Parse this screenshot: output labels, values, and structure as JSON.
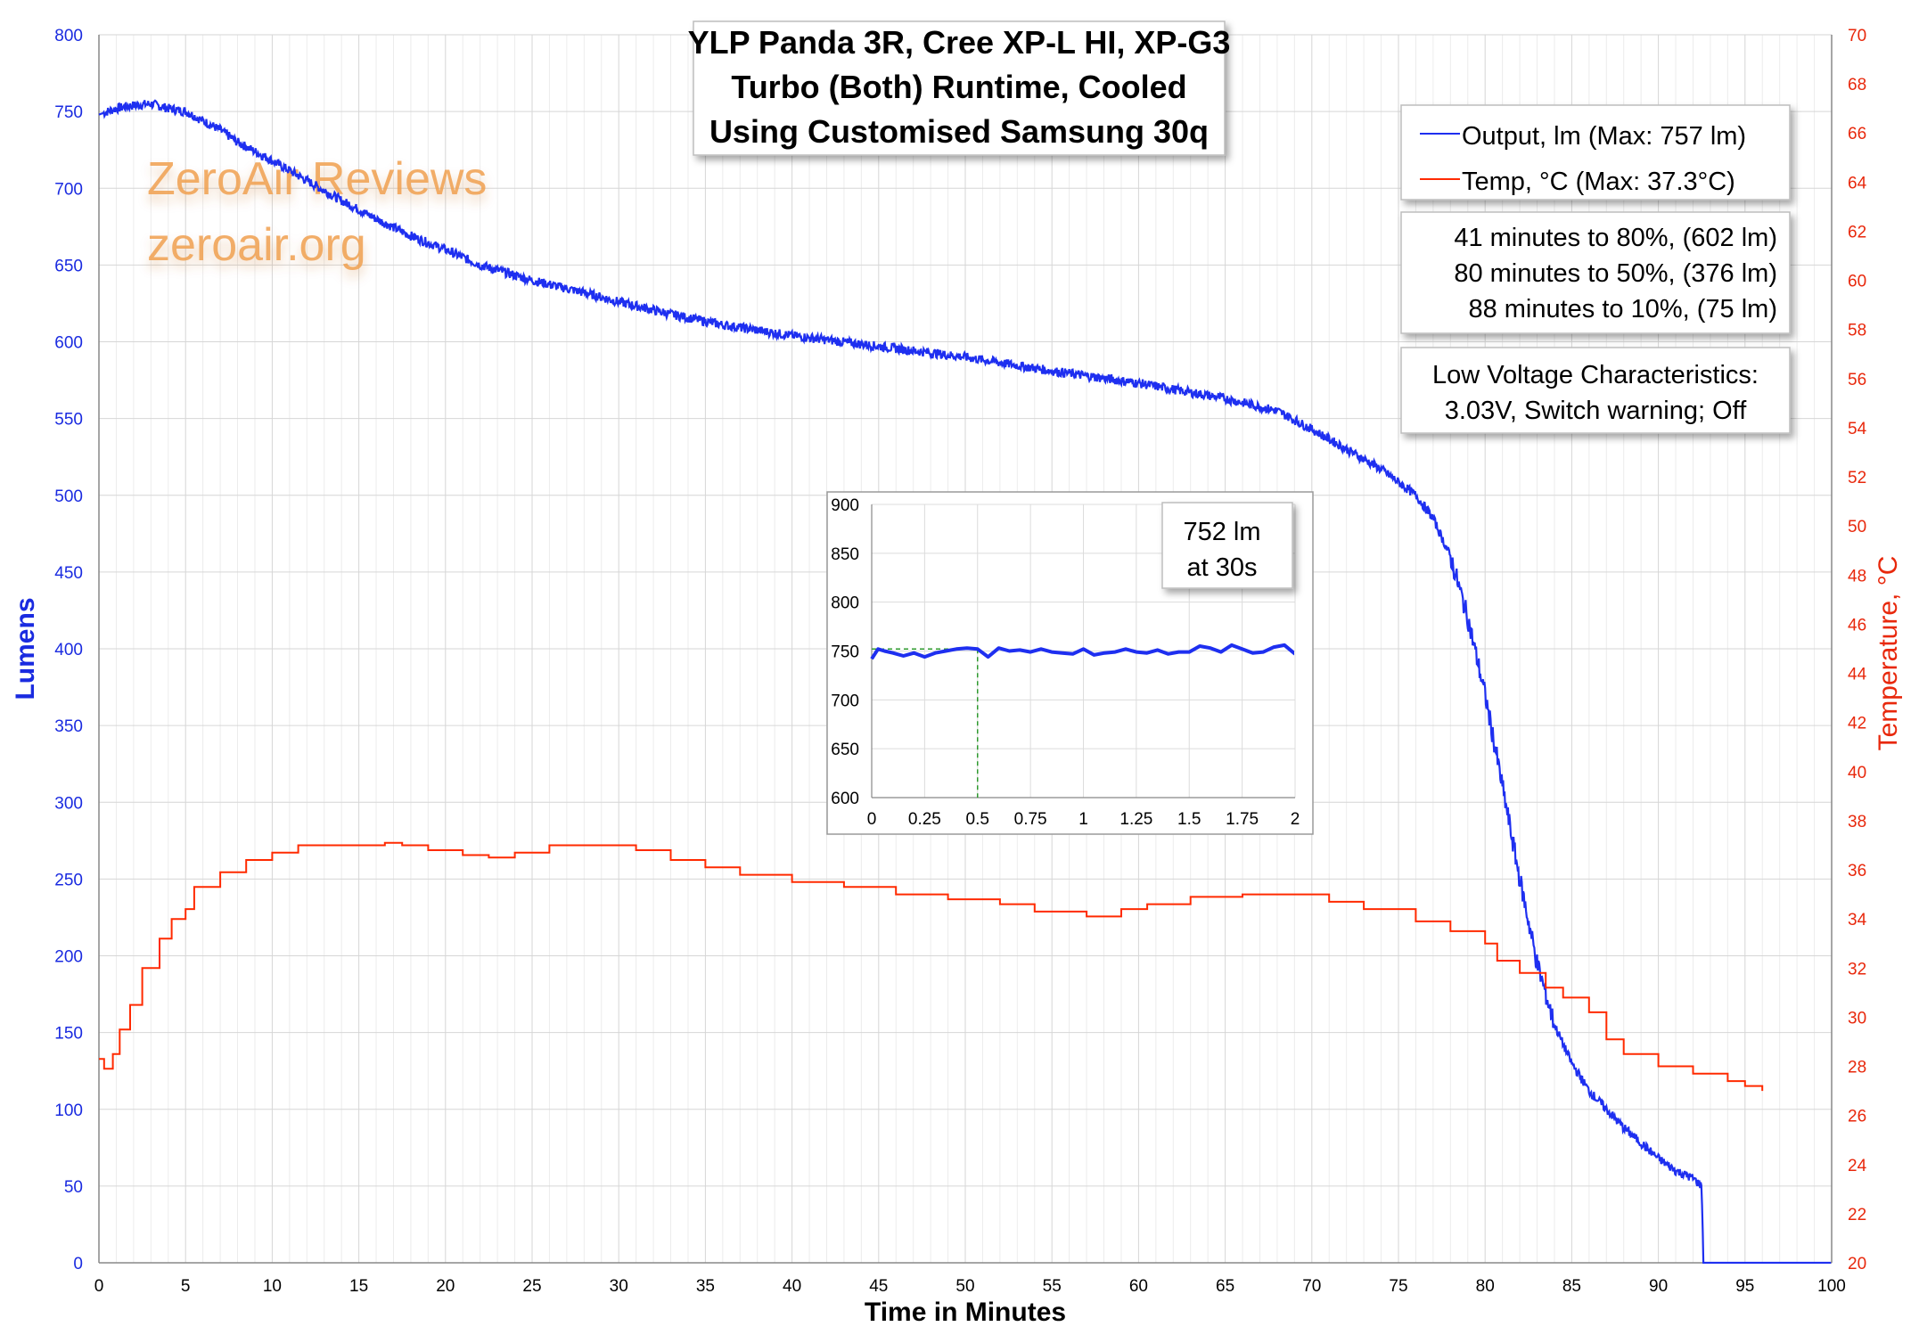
{
  "chart_data": {
    "type": "line",
    "title": [
      "YLP Panda 3R, Cree XP-L HI, XP-G3",
      "Turbo (Both) Runtime, Cooled",
      "Using Customised Samsung 30q"
    ],
    "xlabel": "Time in Minutes",
    "ylabel": "Lumens",
    "y2label": "Temperature, °C",
    "xlim": [
      0,
      100
    ],
    "ylim": [
      0,
      800
    ],
    "y2lim": [
      20,
      70
    ],
    "xticks": [
      0,
      5,
      10,
      15,
      20,
      25,
      30,
      35,
      40,
      45,
      50,
      55,
      60,
      65,
      70,
      75,
      80,
      85,
      90,
      95,
      100
    ],
    "yticks": [
      0,
      50,
      100,
      150,
      200,
      250,
      300,
      350,
      400,
      450,
      500,
      550,
      600,
      650,
      700,
      750,
      800
    ],
    "y2ticks": [
      20,
      22,
      24,
      26,
      28,
      30,
      32,
      34,
      36,
      38,
      40,
      42,
      44,
      46,
      48,
      50,
      52,
      54,
      56,
      58,
      60,
      62,
      64,
      66,
      68,
      70
    ],
    "grid": true,
    "legend_position": "top-right",
    "colors": {
      "output": "#1e2ff0",
      "temp": "#ff2a00",
      "left_axis": "#1a2be0",
      "right_axis": "#e8280c",
      "watermark": "#f0a050"
    },
    "series": [
      {
        "name": "Output, lm (Max: 757 lm)",
        "axis": "left",
        "points": [
          [
            0,
            748
          ],
          [
            1,
            752
          ],
          [
            2,
            754
          ],
          [
            3,
            755
          ],
          [
            4,
            752
          ],
          [
            5,
            750
          ],
          [
            6,
            744
          ],
          [
            7,
            738
          ],
          [
            8,
            730
          ],
          [
            10,
            718
          ],
          [
            12,
            705
          ],
          [
            14,
            692
          ],
          [
            16,
            680
          ],
          [
            18,
            669
          ],
          [
            20,
            660
          ],
          [
            22,
            650
          ],
          [
            25,
            640
          ],
          [
            28,
            632
          ],
          [
            30,
            626
          ],
          [
            33,
            618
          ],
          [
            36,
            611
          ],
          [
            40,
            604
          ],
          [
            45,
            597
          ],
          [
            50,
            590
          ],
          [
            55,
            581
          ],
          [
            60,
            573
          ],
          [
            65,
            563
          ],
          [
            68,
            555
          ],
          [
            70,
            543
          ],
          [
            72,
            530
          ],
          [
            74,
            517
          ],
          [
            76,
            500
          ],
          [
            77,
            485
          ],
          [
            78,
            460
          ],
          [
            79,
            420
          ],
          [
            80,
            370
          ],
          [
            81,
            310
          ],
          [
            82,
            250
          ],
          [
            83,
            195
          ],
          [
            84,
            155
          ],
          [
            85,
            130
          ],
          [
            86,
            112
          ],
          [
            87,
            100
          ],
          [
            88,
            88
          ],
          [
            89,
            78
          ],
          [
            90,
            68
          ],
          [
            91,
            60
          ],
          [
            92,
            55
          ],
          [
            92.5,
            50
          ],
          [
            92.6,
            0
          ],
          [
            100,
            0
          ]
        ]
      },
      {
        "name": "Temp, °C (Max: 37.3°C)",
        "axis": "right",
        "points": [
          [
            0,
            28.3
          ],
          [
            0.3,
            27.9
          ],
          [
            0.6,
            27.9
          ],
          [
            0.8,
            28.5
          ],
          [
            1.2,
            29.5
          ],
          [
            1.8,
            30.5
          ],
          [
            2.5,
            32.0
          ],
          [
            3.5,
            33.2
          ],
          [
            4.2,
            34.0
          ],
          [
            5,
            34.4
          ],
          [
            5.5,
            35.3
          ],
          [
            7,
            35.9
          ],
          [
            8.5,
            36.4
          ],
          [
            10,
            36.7
          ],
          [
            11.5,
            37.0
          ],
          [
            16,
            37.0
          ],
          [
            16.5,
            37.1
          ],
          [
            17.5,
            37.0
          ],
          [
            19,
            36.8
          ],
          [
            21,
            36.6
          ],
          [
            22.5,
            36.5
          ],
          [
            24,
            36.7
          ],
          [
            26,
            37.0
          ],
          [
            30,
            37.0
          ],
          [
            31,
            36.8
          ],
          [
            33,
            36.4
          ],
          [
            35,
            36.1
          ],
          [
            37,
            35.8
          ],
          [
            40,
            35.5
          ],
          [
            43,
            35.3
          ],
          [
            46,
            35.0
          ],
          [
            49,
            34.8
          ],
          [
            52,
            34.6
          ],
          [
            54,
            34.3
          ],
          [
            57,
            34.1
          ],
          [
            59,
            34.4
          ],
          [
            60.5,
            34.6
          ],
          [
            63,
            34.9
          ],
          [
            66,
            35.0
          ],
          [
            69,
            35.0
          ],
          [
            71,
            34.7
          ],
          [
            73,
            34.4
          ],
          [
            76,
            33.9
          ],
          [
            78,
            33.5
          ],
          [
            80,
            33.0
          ],
          [
            80.7,
            32.3
          ],
          [
            82,
            31.8
          ],
          [
            83.5,
            31.2
          ],
          [
            84.5,
            30.8
          ],
          [
            86,
            30.2
          ],
          [
            87,
            29.1
          ],
          [
            88,
            28.5
          ],
          [
            90,
            28.0
          ],
          [
            92,
            27.7
          ],
          [
            94,
            27.4
          ],
          [
            95,
            27.2
          ],
          [
            96,
            27.0
          ]
        ]
      }
    ],
    "annotations": [
      [
        "41 minutes to 80%, (602 lm)",
        "80 minutes to 50%, (376 lm)",
        "88 minutes to 10%, (75 lm)"
      ],
      [
        "Low Voltage Characteristics:",
        "3.03V, Switch warning; Off"
      ]
    ],
    "watermark": [
      "ZeroAir Reviews",
      "zeroair.org"
    ],
    "inset": {
      "type": "line",
      "xlim": [
        0,
        2
      ],
      "ylim": [
        600,
        900
      ],
      "xticks": [
        0,
        0.25,
        0.5,
        0.75,
        1,
        1.25,
        1.5,
        1.75,
        2
      ],
      "xtick_labels": [
        "0",
        "0.25",
        "0.5",
        "0.75",
        "1",
        "1.25",
        "1.5",
        "1.75",
        "2"
      ],
      "yticks": [
        600,
        650,
        700,
        750,
        800,
        850,
        900
      ],
      "annotation": [
        "752 lm",
        "at 30s"
      ],
      "marker": {
        "x": 0.5,
        "y": 752
      },
      "x": [
        0,
        0.03,
        0.06,
        0.1,
        0.15,
        0.2,
        0.25,
        0.3,
        0.35,
        0.4,
        0.45,
        0.5,
        0.55,
        0.6,
        0.65,
        0.7,
        0.75,
        0.8,
        0.85,
        0.9,
        0.95,
        1.0,
        1.05,
        1.1,
        1.15,
        1.2,
        1.25,
        1.3,
        1.35,
        1.4,
        1.45,
        1.5,
        1.55,
        1.6,
        1.65,
        1.7,
        1.75,
        1.8,
        1.85,
        1.9,
        1.95,
        2.0
      ],
      "values": [
        742,
        752,
        750,
        748,
        745,
        748,
        744,
        748,
        750,
        752,
        753,
        752,
        744,
        753,
        750,
        751,
        749,
        752,
        749,
        748,
        747,
        752,
        746,
        748,
        749,
        752,
        749,
        748,
        751,
        747,
        749,
        749,
        755,
        753,
        749,
        756,
        752,
        748,
        749,
        754,
        756,
        747
      ]
    }
  }
}
